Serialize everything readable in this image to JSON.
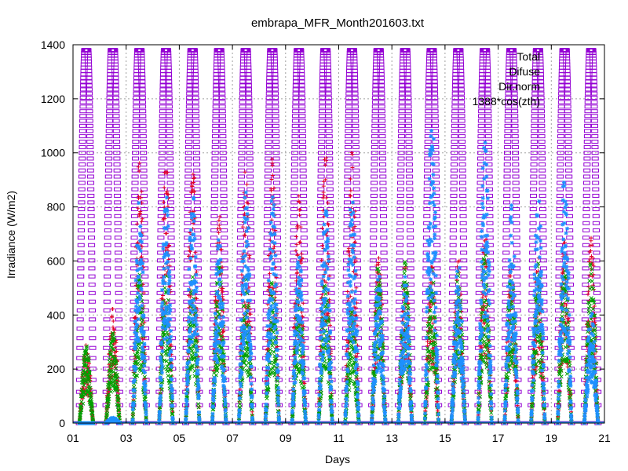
{
  "chart_data": {
    "type": "scatter",
    "title": "embrapa_MFR_Month201603.txt",
    "xlabel": "Days",
    "ylabel": "Irradiance (W/m2)",
    "xlim": [
      1,
      21
    ],
    "ylim": [
      0,
      1400
    ],
    "x_ticks": [
      1,
      3,
      5,
      7,
      9,
      11,
      13,
      15,
      17,
      19,
      21
    ],
    "x_tick_labels": [
      "01",
      "03",
      "05",
      "07",
      "09",
      "11",
      "13",
      "15",
      "17",
      "19",
      "21"
    ],
    "y_ticks": [
      0,
      200,
      400,
      600,
      800,
      1000,
      1200,
      1400
    ],
    "y_tick_labels": [
      "0",
      "200",
      "400",
      "600",
      "800",
      "1000",
      "1200",
      "1400"
    ],
    "grid": true,
    "legend_position": "top-right",
    "series": [
      {
        "name": "Total",
        "color": "#e0002a",
        "marker": "plus",
        "daily_peak_x": [
          1.5,
          2.5,
          3.5,
          4.5,
          5.5,
          6.5,
          7.5,
          8.5,
          9.5,
          10.5,
          11.5,
          12.5,
          13.5,
          14.5,
          15.5,
          16.5,
          17.5,
          18.5,
          19.5,
          20.5
        ],
        "daily_peak_y": [
          300,
          430,
          980,
          1010,
          1000,
          790,
          1020,
          980,
          880,
          1020,
          1040,
          660,
          600,
          600,
          620,
          710,
          640,
          620,
          700,
          690
        ]
      },
      {
        "name": "Difuse",
        "color": "#00a000",
        "marker": "x",
        "daily_peak_x": [
          1.5,
          2.5,
          3.5,
          4.5,
          5.5,
          6.5,
          7.5,
          8.5,
          9.5,
          10.5,
          11.5,
          12.5,
          13.5,
          14.5,
          15.5,
          16.5,
          17.5,
          18.5,
          19.5,
          20.5
        ],
        "daily_peak_y": [
          290,
          340,
          560,
          560,
          550,
          620,
          560,
          530,
          490,
          540,
          420,
          620,
          600,
          580,
          560,
          640,
          600,
          600,
          620,
          600
        ]
      },
      {
        "name": "Dir.norm",
        "color": "#1e90ff",
        "marker": "star",
        "daily_peak_x": [
          1.5,
          2.5,
          3.5,
          4.5,
          5.5,
          6.5,
          7.5,
          8.5,
          9.5,
          10.5,
          11.5,
          12.5,
          13.5,
          14.5,
          15.5,
          16.5,
          17.5,
          18.5,
          19.5,
          20.5
        ],
        "daily_peak_y": [
          0,
          20,
          830,
          870,
          860,
          700,
          880,
          880,
          640,
          840,
          880,
          560,
          560,
          1180,
          620,
          1110,
          820,
          900,
          940,
          420
        ]
      },
      {
        "name": "1388*cos(zth)",
        "color": "#9400d3",
        "marker": "square",
        "daily_peak_x": [
          1.5,
          2.5,
          3.5,
          4.5,
          5.5,
          6.5,
          7.5,
          8.5,
          9.5,
          10.5,
          11.5,
          12.5,
          13.5,
          14.5,
          15.5,
          16.5,
          17.5,
          18.5,
          19.5,
          20.5
        ],
        "daily_peak_y": [
          1380,
          1380,
          1380,
          1380,
          1380,
          1380,
          1380,
          1380,
          1380,
          1380,
          1380,
          1380,
          1380,
          1380,
          1380,
          1380,
          1380,
          1380,
          1380,
          1380
        ]
      }
    ]
  }
}
